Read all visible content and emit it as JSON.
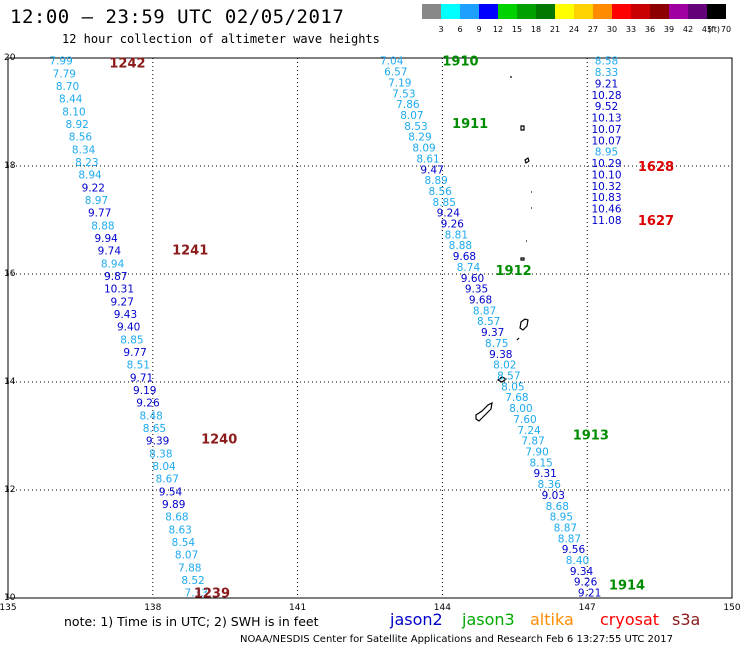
{
  "header": {
    "title": "12:00 – 23:59 UTC 02/05/2017",
    "subtitle": "12 hour collection of altimeter wave heights"
  },
  "colorbar": {
    "unit_label": "(ft)",
    "bins": [
      {
        "label": "3",
        "color": "#888888"
      },
      {
        "label": "6",
        "color": "#00ffff"
      },
      {
        "label": "9",
        "color": "#1ea0ff"
      },
      {
        "label": "12",
        "color": "#0000ff"
      },
      {
        "label": "15",
        "color": "#00d200"
      },
      {
        "label": "18",
        "color": "#00a000"
      },
      {
        "label": "21",
        "color": "#007800"
      },
      {
        "label": "24",
        "color": "#ffff00"
      },
      {
        "label": "27",
        "color": "#ffd200"
      },
      {
        "label": "30",
        "color": "#ff8c00"
      },
      {
        "label": "33",
        "color": "#ff0000"
      },
      {
        "label": "36",
        "color": "#c80000"
      },
      {
        "label": "39",
        "color": "#8c0000"
      },
      {
        "label": "42",
        "color": "#a000a0"
      },
      {
        "label": "45",
        "color": "#640078"
      },
      {
        "label": "70",
        "color": "#000000"
      }
    ]
  },
  "map": {
    "lon_range": [
      135,
      150
    ],
    "lat_range": [
      10,
      20
    ],
    "x_ticks": [
      "135",
      "138",
      "141",
      "144",
      "147",
      "150"
    ],
    "y_ticks": [
      "20",
      "18",
      "16",
      "14",
      "12",
      "10"
    ],
    "grid": "dotted"
  },
  "chart_data": {
    "type": "scatter",
    "value_unit": "ft",
    "colors": {
      "cyan": "#1eaaee",
      "blue": "#0000cc",
      "pass_dark": "#8b1a1a",
      "pass_green": "#008c00",
      "pass_red": "#dd0000"
    },
    "tracks": [
      {
        "name": "track_a",
        "color_pattern": "lon-descending",
        "start": [
          136.1,
          19.95
        ],
        "end": [
          138.9,
          10.1
        ],
        "values": [
          "7.99",
          "7.79",
          "8.70",
          "8.44",
          "8.10",
          "8.92",
          "8.56",
          "8.34",
          "8.23",
          "8.94",
          "9.22",
          "8.97",
          "9.77",
          "8.88",
          "9.94",
          "9.74",
          "8.94",
          "9.87",
          "10.31",
          "9.27",
          "9.43",
          "9.40",
          "8.85",
          "9.77",
          "8.51",
          "9.71",
          "9.19",
          "9.26",
          "8.48",
          "8.65",
          "9.39",
          "8.38",
          "8.04",
          "8.67",
          "9.54",
          "9.89",
          "8.68",
          "8.63",
          "8.54",
          "8.07",
          "7.88",
          "8.52",
          "7.33"
        ],
        "blue_values": [
          "9.22",
          "9.77",
          "9.94",
          "9.74",
          "9.87",
          "10.31",
          "9.27",
          "9.43",
          "9.40",
          "9.77",
          "9.71",
          "9.19",
          "9.26",
          "9.39",
          "9.54",
          "9.89"
        ]
      },
      {
        "name": "track_b",
        "start": [
          142.95,
          19.95
        ],
        "end": [
          147.05,
          10.1
        ],
        "values": [
          "7.04",
          "6.57",
          "7.19",
          "7.53",
          "7.86",
          "8.07",
          "8.53",
          "8.29",
          "8.09",
          "8.61",
          "9.47",
          "8.89",
          "8.56",
          "8.85",
          "9.24",
          "9.26",
          "8.81",
          "8.88",
          "9.68",
          "8.74",
          "9.60",
          "9.35",
          "9.68",
          "8.87",
          "8.57",
          "9.37",
          "8.75",
          "9.38",
          "8.02",
          "8.57",
          "8.05",
          "7.68",
          "8.00",
          "7.60",
          "7.24",
          "7.87",
          "7.90",
          "8.15",
          "9.31",
          "8.36",
          "9.03",
          "8.68",
          "8.95",
          "8.87",
          "8.87",
          "9.56",
          "8.40",
          "9.34",
          "9.26",
          "9.21"
        ],
        "blue_values": [
          "9.47",
          "9.24",
          "9.26",
          "9.68",
          "9.60",
          "9.35",
          "9.68",
          "9.37",
          "9.38",
          "9.31",
          "9.03",
          "9.56",
          "9.34",
          "9.26",
          "9.21"
        ]
      },
      {
        "name": "track_c",
        "start": [
          147.4,
          19.95
        ],
        "end": [
          147.4,
          17.0
        ],
        "values": [
          "8.58",
          "8.33",
          "9.21",
          "10.28",
          "9.52",
          "10.13",
          "10.07",
          "10.07",
          "8.95",
          "10.29",
          "10.10",
          "10.32",
          "10.83",
          "10.46",
          "11.08"
        ],
        "blue_values": [
          "9.21",
          "10.28",
          "9.52",
          "10.13",
          "10.07",
          "10.07",
          "10.29",
          "10.10",
          "10.32",
          "10.83",
          "10.46",
          "11.08"
        ]
      }
    ],
    "pass_labels": [
      {
        "text": "1242",
        "lon": 137.1,
        "lat": 19.92,
        "color": "pass_dark"
      },
      {
        "text": "1241",
        "lon": 138.4,
        "lat": 16.45,
        "color": "pass_dark"
      },
      {
        "text": "1240",
        "lon": 139.0,
        "lat": 12.95,
        "color": "pass_dark"
      },
      {
        "text": "1239",
        "lon": 138.85,
        "lat": 10.1,
        "color": "pass_dark"
      },
      {
        "text": "1910",
        "lon": 144.0,
        "lat": 19.95,
        "color": "pass_green"
      },
      {
        "text": "1911",
        "lon": 144.2,
        "lat": 18.8,
        "color": "pass_green"
      },
      {
        "text": "1912",
        "lon": 145.1,
        "lat": 16.07,
        "color": "pass_green"
      },
      {
        "text": "1913",
        "lon": 146.7,
        "lat": 13.03,
        "color": "pass_green"
      },
      {
        "text": "1914",
        "lon": 147.45,
        "lat": 10.25,
        "color": "pass_green"
      },
      {
        "text": "1628",
        "lon": 148.05,
        "lat": 18.0,
        "color": "pass_red"
      },
      {
        "text": "1627",
        "lon": 148.05,
        "lat": 17.0,
        "color": "pass_red"
      }
    ]
  },
  "footer": {
    "note": "note: 1) Time is in UTC; 2) SWH is in feet",
    "legend": [
      {
        "label": "jason2",
        "color": "#0000cc"
      },
      {
        "label": "jason3",
        "color": "#00aa00"
      },
      {
        "label": "altika",
        "color": "#ff8c00"
      },
      {
        "label": "cryosat",
        "color": "#ff0000"
      },
      {
        "label": "s3a",
        "color": "#8b1a1a"
      }
    ],
    "credit": "NOAA/NESDIS Center for Satellite Applications and Research    Feb  6 13:27:55 UTC 2017"
  }
}
